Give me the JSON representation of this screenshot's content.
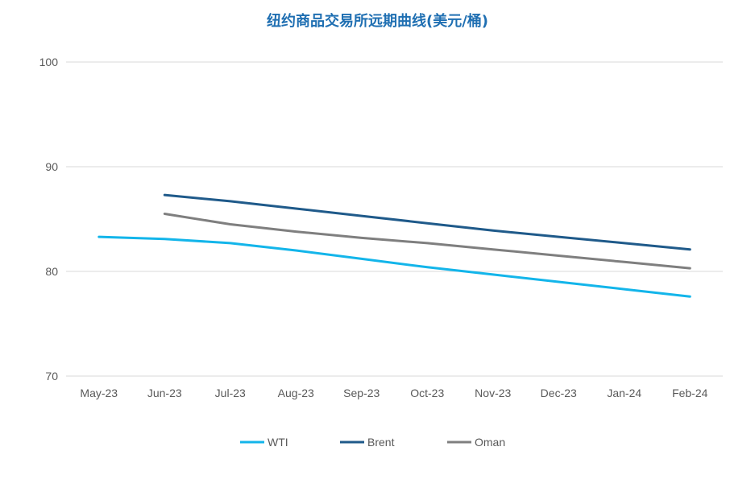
{
  "colors": {
    "title": "#1f6fb2",
    "grid": "#d9d9d9",
    "axis_text": "#595959",
    "wti": "#13b5ea",
    "brent": "#1f5a8a",
    "oman": "#7f7f7f"
  },
  "chart_data": {
    "type": "line",
    "title": "纽约商品交易所远期曲线(美元/桶)",
    "xlabel": "",
    "ylabel": "",
    "categories": [
      "May-23",
      "Jun-23",
      "Jul-23",
      "Aug-23",
      "Sep-23",
      "Oct-23",
      "Nov-23",
      "Dec-23",
      "Jan-24",
      "Feb-24"
    ],
    "ylim": [
      70,
      100
    ],
    "yticks": [
      "70",
      "80",
      "90",
      "100"
    ],
    "grid": true,
    "legend_position": "bottom",
    "series": [
      {
        "name": "WTI",
        "color_key": "wti",
        "values": [
          83.3,
          83.1,
          82.7,
          82.0,
          81.2,
          80.4,
          79.7,
          79.0,
          78.3,
          77.6
        ]
      },
      {
        "name": "Brent",
        "color_key": "brent",
        "values": [
          null,
          87.3,
          86.7,
          86.0,
          85.3,
          84.6,
          83.9,
          83.3,
          82.7,
          82.1
        ]
      },
      {
        "name": "Oman",
        "color_key": "oman",
        "values": [
          null,
          85.5,
          84.5,
          83.8,
          83.2,
          82.7,
          82.1,
          81.5,
          80.9,
          80.3
        ]
      }
    ]
  }
}
